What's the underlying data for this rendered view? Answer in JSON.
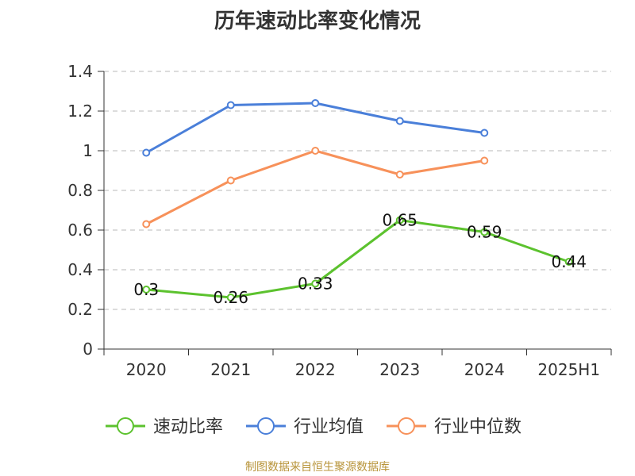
{
  "title": "历年速动比率变化情况",
  "source": "制图数据来自恒生聚源数据库",
  "chart_data": {
    "type": "line",
    "title": "历年速动比率变化情况",
    "categories": [
      "2020",
      "2021",
      "2022",
      "2023",
      "2024",
      "2025H1"
    ],
    "y_ticks": [
      "0",
      "0.2",
      "0.4",
      "0.6",
      "0.8",
      "1",
      "1.2",
      "1.4"
    ],
    "ylim": [
      0,
      1.4
    ],
    "grid": true,
    "legend_position": "bottom",
    "series": [
      {
        "name": "速动比率",
        "color": "#5cc22e",
        "values": [
          0.3,
          0.26,
          0.33,
          0.65,
          0.59,
          0.44
        ],
        "labels": [
          "0.3",
          "0.26",
          "0.33",
          "0.65",
          "0.59",
          "0.44"
        ],
        "show_labels": true
      },
      {
        "name": "行业均值",
        "color": "#4a7fd9",
        "values": [
          0.99,
          1.23,
          1.24,
          1.15,
          1.09,
          null
        ],
        "show_labels": false
      },
      {
        "name": "行业中位数",
        "color": "#f7915a",
        "values": [
          0.63,
          0.85,
          1.0,
          0.88,
          0.95,
          null
        ],
        "show_labels": false
      }
    ]
  }
}
